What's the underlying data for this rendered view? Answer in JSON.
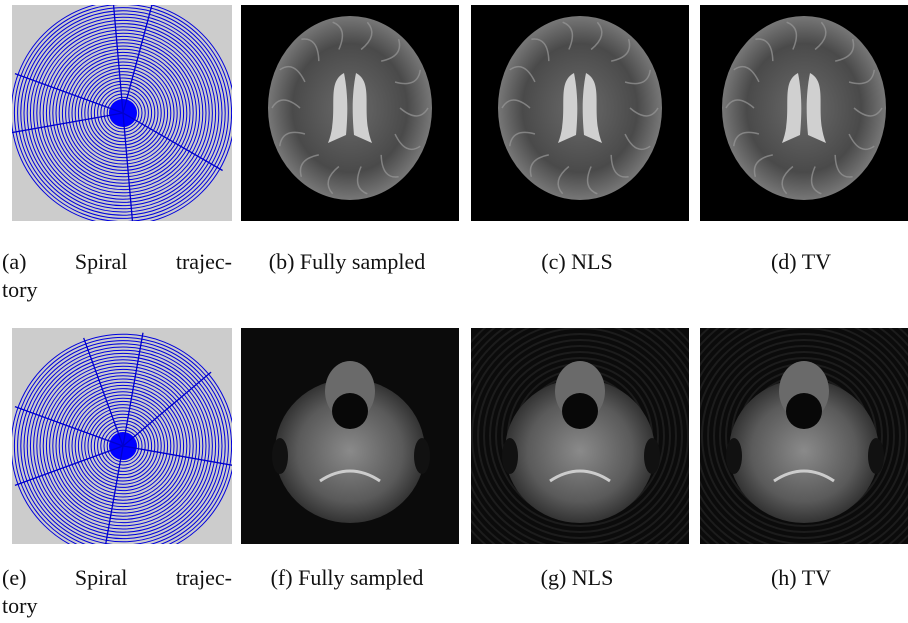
{
  "figure": {
    "rows": [
      {
        "panels": [
          {
            "caption": [
              "(a) Spiral trajec-",
              "tory"
            ]
          },
          {
            "caption": [
              "(b) Fully sampled"
            ]
          },
          {
            "caption": [
              "(c) NLS"
            ]
          },
          {
            "caption": [
              "(d) TV"
            ]
          }
        ]
      },
      {
        "panels": [
          {
            "caption": [
              "(e) Spiral trajec-",
              "tory"
            ]
          },
          {
            "caption": [
              "(f) Fully sampled"
            ]
          },
          {
            "caption": [
              "(g) NLS"
            ]
          },
          {
            "caption": [
              "(h) TV"
            ]
          }
        ]
      }
    ]
  }
}
